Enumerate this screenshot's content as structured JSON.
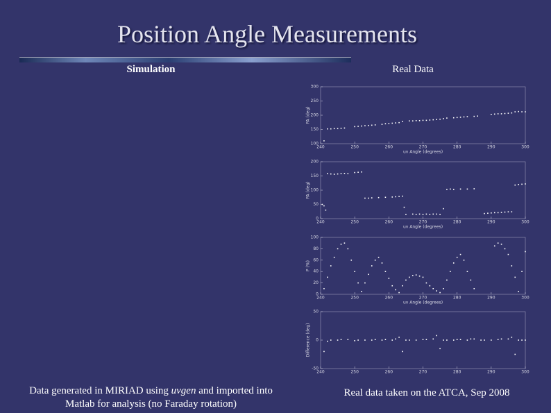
{
  "title": "Position Angle Measurements",
  "left_heading": "Simulation",
  "right_heading": "Real Data",
  "left_caption": [
    "Data generated in MIRIAD using ",
    "uvgen",
    " and imported into",
    "Matlab for analysis (no Faraday rotation)"
  ],
  "right_caption": "Real data taken on the ATCA, Sep 2008",
  "chart_data": [
    {
      "type": "scatter",
      "ylabel": "PA (deg)",
      "xlabel": "uv Angle (degrees)",
      "xlim": [
        240,
        300
      ],
      "ylim": [
        100,
        300
      ],
      "xticks": [
        240,
        250,
        260,
        270,
        280,
        290,
        300
      ],
      "yticks": [
        100,
        150,
        200,
        250,
        300
      ],
      "x": [
        241,
        242,
        243,
        244,
        245,
        246,
        247,
        250,
        251,
        252,
        253,
        254,
        255,
        256,
        258,
        259,
        260,
        261,
        262,
        263,
        264,
        266,
        267,
        268,
        269,
        270,
        271,
        272,
        273,
        274,
        275,
        276,
        277,
        279,
        280,
        281,
        282,
        283,
        285,
        286,
        290,
        291,
        292,
        293,
        294,
        295,
        296,
        297,
        298,
        299,
        300
      ],
      "values": [
        110,
        152,
        152,
        153,
        153,
        154,
        155,
        160,
        161,
        162,
        163,
        164,
        165,
        166,
        168,
        170,
        171,
        172,
        173,
        174,
        178,
        180,
        180,
        181,
        181,
        182,
        182,
        183,
        184,
        185,
        186,
        188,
        190,
        191,
        192,
        193,
        194,
        195,
        196,
        197,
        203,
        204,
        205,
        205,
        206,
        207,
        208,
        212,
        213,
        212,
        212
      ]
    },
    {
      "type": "scatter",
      "ylabel": "PA (deg)",
      "xlabel": "uv Angle (degrees)",
      "xlim": [
        240,
        300
      ],
      "ylim": [
        0,
        200
      ],
      "xticks": [
        240,
        250,
        260,
        270,
        280,
        290,
        300
      ],
      "yticks": [
        0,
        50,
        100,
        150,
        200
      ],
      "x": [
        240.5,
        241,
        241.5,
        242,
        243,
        244,
        245,
        246,
        247,
        248,
        250,
        251,
        252,
        253,
        254,
        255,
        257,
        259,
        261,
        262,
        263,
        264,
        264.5,
        265,
        267,
        268,
        269,
        270,
        271,
        272,
        273,
        274,
        275,
        276,
        277,
        278,
        279,
        281,
        283,
        285,
        288,
        289,
        290,
        291,
        292,
        293,
        294,
        295,
        296,
        297,
        298,
        299,
        300
      ],
      "values": [
        50,
        45,
        30,
        158,
        157,
        156,
        157,
        158,
        159,
        158,
        162,
        163,
        164,
        72,
        72,
        73,
        74,
        75,
        76,
        77,
        78,
        79,
        40,
        15,
        16,
        15,
        16,
        15,
        16,
        15,
        16,
        16,
        15,
        35,
        103,
        104,
        103,
        104,
        104,
        105,
        18,
        19,
        20,
        21,
        21,
        22,
        23,
        24,
        24,
        118,
        120,
        121,
        122
      ]
    },
    {
      "type": "scatter",
      "ylabel": "P (%)",
      "xlabel": "uv Angle (degrees)",
      "xlim": [
        240,
        300
      ],
      "ylim": [
        0,
        100
      ],
      "xticks": [
        240,
        250,
        260,
        270,
        280,
        290,
        300
      ],
      "yticks": [
        0,
        20,
        40,
        60,
        80,
        100
      ],
      "x": [
        241,
        242,
        243,
        244,
        245,
        246,
        247,
        248,
        249,
        250,
        251,
        252,
        253,
        254,
        255,
        256,
        257,
        258,
        259,
        260,
        261,
        262,
        263,
        264,
        265,
        266,
        267,
        268,
        269,
        270,
        271,
        272,
        273,
        274,
        275,
        276,
        277,
        278,
        279,
        280,
        281,
        282,
        283,
        284,
        285,
        291,
        292,
        293,
        294,
        295,
        296,
        297,
        298,
        299,
        300
      ],
      "values": [
        10,
        30,
        50,
        65,
        80,
        88,
        90,
        80,
        60,
        40,
        20,
        5,
        20,
        35,
        50,
        60,
        65,
        55,
        40,
        28,
        15,
        8,
        3,
        15,
        25,
        30,
        33,
        34,
        32,
        30,
        20,
        15,
        10,
        6,
        3,
        10,
        25,
        40,
        55,
        65,
        70,
        60,
        40,
        25,
        10,
        85,
        90,
        88,
        80,
        70,
        50,
        30,
        5,
        40,
        75
      ]
    },
    {
      "type": "scatter",
      "ylabel": "Difference (deg)",
      "xlim": [
        240,
        300
      ],
      "ylim": [
        -50,
        50
      ],
      "xticks": [
        240,
        250,
        260,
        270,
        280,
        290,
        300
      ],
      "yticks": [
        -50,
        0,
        50
      ],
      "x": [
        241,
        242,
        243,
        245,
        246,
        248,
        250,
        251,
        253,
        255,
        256,
        258,
        259,
        261,
        262,
        263,
        264,
        265,
        266,
        268,
        270,
        271,
        273,
        274,
        275,
        276,
        277,
        279,
        280,
        281,
        283,
        284,
        285,
        287,
        288,
        290,
        292,
        293,
        295,
        296,
        297,
        298,
        299,
        300
      ],
      "values": [
        -20,
        -2,
        0,
        0,
        1,
        1,
        -1,
        0,
        0,
        0,
        1,
        0,
        1,
        0,
        2,
        5,
        -20,
        0,
        0,
        0,
        1,
        1,
        2,
        8,
        -15,
        0,
        0,
        0,
        1,
        1,
        0,
        2,
        2,
        0,
        0,
        0,
        1,
        2,
        2,
        5,
        -25,
        0,
        0,
        0
      ]
    }
  ]
}
